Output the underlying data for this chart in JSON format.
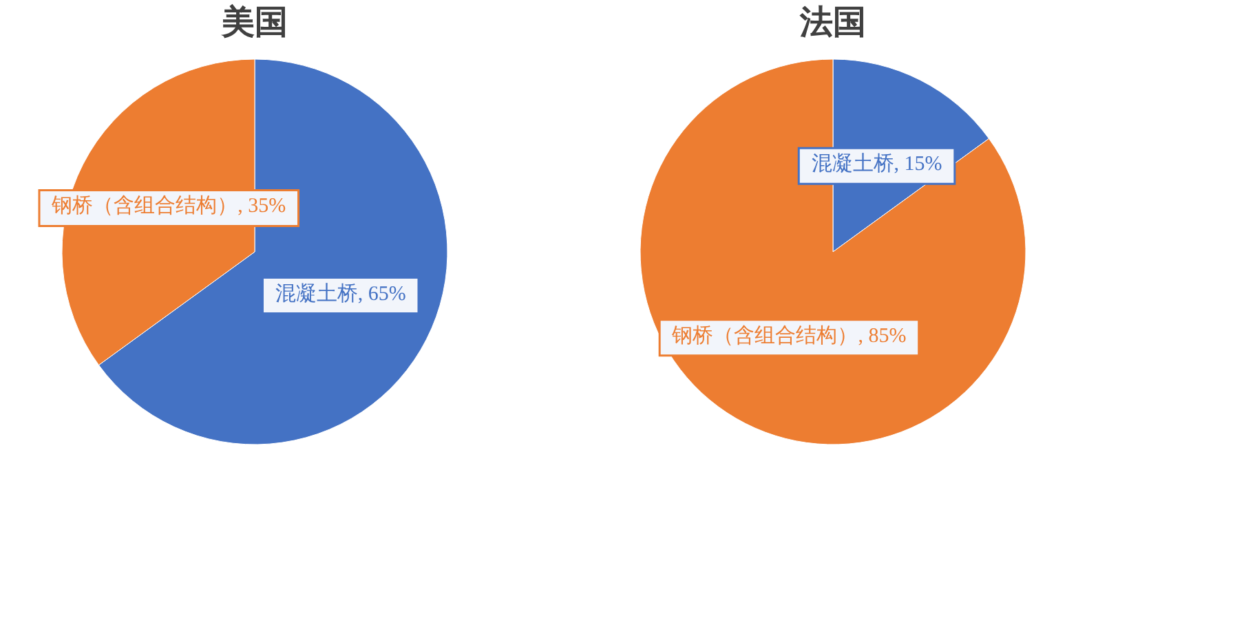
{
  "chart_data": [
    {
      "type": "pie",
      "title": "美国",
      "categories": [
        "混凝土桥",
        "钢桥（含组合结构）"
      ],
      "values": [
        65,
        35
      ],
      "colors": [
        "#4472c4",
        "#ed7d31"
      ],
      "value_labels": [
        ", 65%",
        ", 35%"
      ],
      "legend": false
    },
    {
      "type": "pie",
      "title": "法国",
      "categories": [
        "混凝土桥",
        "钢桥（含组合结构）"
      ],
      "values": [
        15,
        85
      ],
      "colors": [
        "#4472c4",
        "#ed7d31"
      ],
      "value_labels": [
        ", 15%",
        ", 85%"
      ],
      "legend": false
    }
  ]
}
